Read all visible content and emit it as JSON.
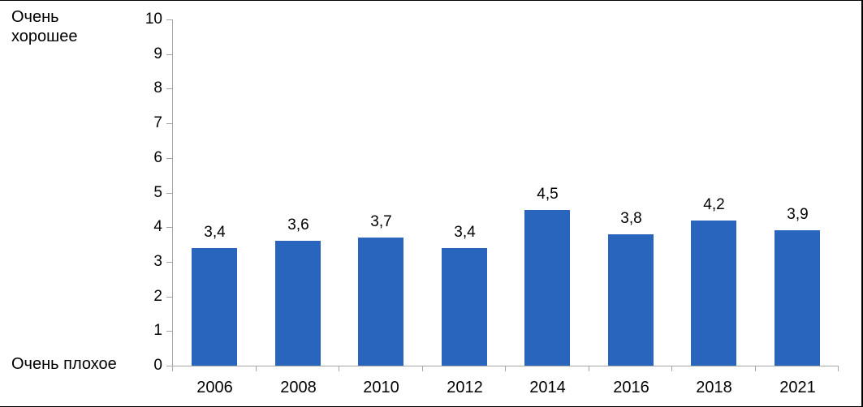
{
  "chart_data": {
    "type": "bar",
    "title": "",
    "categories": [
      "2006",
      "2008",
      "2010",
      "2012",
      "2014",
      "2016",
      "2018",
      "2021"
    ],
    "values": [
      3.4,
      3.6,
      3.7,
      3.4,
      4.5,
      3.8,
      4.2,
      3.9
    ],
    "value_labels": [
      "3,4",
      "3,6",
      "3,7",
      "3,4",
      "4,5",
      "3,8",
      "4,2",
      "3,9"
    ],
    "ylabel_top": "Очень хорошее",
    "ylabel_bottom": "Очень плохое",
    "xlabel": "",
    "ylim": [
      0,
      10
    ],
    "yticks": [
      0,
      1,
      2,
      3,
      4,
      5,
      6,
      7,
      8,
      9,
      10
    ],
    "decimal_separator": ",",
    "grid": false,
    "legend_position": "none",
    "colors": {
      "bar": "#2A65BD",
      "axis": "#A6A6A6",
      "text": "#000000",
      "frame_border": "#000000",
      "background": "#FFFFFF"
    }
  }
}
